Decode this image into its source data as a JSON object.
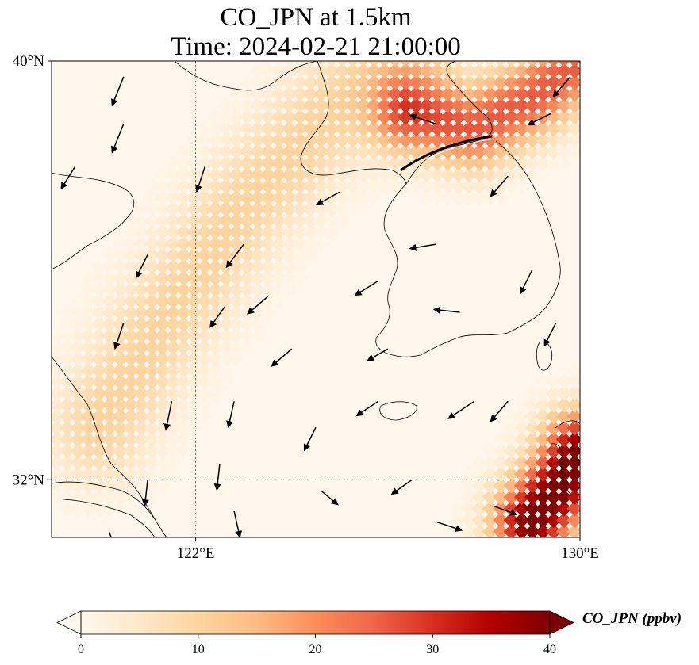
{
  "title_line1": "CO_JPN at 1.5km",
  "title_line2": "Time: 2024-02-21 21:00:00",
  "chart_data": {
    "type": "heatmap",
    "variable": "CO_JPN",
    "colorbar_label": "CO_JPN (ppbv)",
    "colormap": "OrRd",
    "colorbar_ticks": [
      0,
      10,
      20,
      30,
      40
    ],
    "colorbar_range": [
      0,
      40
    ],
    "colorbar_extend": "both",
    "xlim": [
      119.0,
      130.0
    ],
    "ylim": [
      30.9,
      40.0
    ],
    "x_ticks": [
      {
        "value": 122,
        "label": "122°E"
      },
      {
        "value": 130,
        "label": "130°E"
      }
    ],
    "y_ticks": [
      {
        "value": 40,
        "label": "40°N"
      },
      {
        "value": 32,
        "label": "32°N"
      }
    ],
    "gridlines": [
      {
        "lon": 122
      },
      {
        "lat": 32
      }
    ],
    "plumes": [
      {
        "name": "diagonal band west",
        "path": [
          [
            120.0,
            33.0
          ],
          [
            121.3,
            35.0
          ],
          [
            123.0,
            37.2
          ],
          [
            125.0,
            39.2
          ],
          [
            126.5,
            40.2
          ]
        ],
        "peak_ppbv": 10
      },
      {
        "name": "north plume",
        "path": [
          [
            126.5,
            39.0
          ],
          [
            127.8,
            38.7
          ],
          [
            129.0,
            39.3
          ],
          [
            130.0,
            40.0
          ]
        ],
        "peak_ppbv": 26
      },
      {
        "name": "southeast plume",
        "path": [
          [
            129.0,
            31.2
          ],
          [
            129.6,
            31.9
          ],
          [
            130.0,
            32.5
          ]
        ],
        "peak_ppbv": 42
      }
    ],
    "wind_vectors": [
      {
        "lon": 120.5,
        "lat": 39.7,
        "u": -0.8,
        "v": -2.0
      },
      {
        "lon": 120.5,
        "lat": 38.8,
        "u": -0.8,
        "v": -2.0
      },
      {
        "lon": 119.5,
        "lat": 38.0,
        "u": -1.0,
        "v": -1.6
      },
      {
        "lon": 121.0,
        "lat": 36.3,
        "u": -0.8,
        "v": -1.6
      },
      {
        "lon": 120.5,
        "lat": 35.0,
        "u": -0.6,
        "v": -1.8
      },
      {
        "lon": 121.5,
        "lat": 33.5,
        "u": -0.4,
        "v": -2.0
      },
      {
        "lon": 121.0,
        "lat": 32.0,
        "u": -0.2,
        "v": -1.8
      },
      {
        "lon": 122.2,
        "lat": 38.0,
        "u": -0.6,
        "v": -1.8
      },
      {
        "lon": 123.0,
        "lat": 36.5,
        "u": -1.2,
        "v": -1.6
      },
      {
        "lon": 122.6,
        "lat": 35.3,
        "u": -1.0,
        "v": -1.4
      },
      {
        "lon": 122.8,
        "lat": 33.5,
        "u": -0.4,
        "v": -1.8
      },
      {
        "lon": 122.5,
        "lat": 32.3,
        "u": -0.2,
        "v": -1.8
      },
      {
        "lon": 123.5,
        "lat": 35.5,
        "u": -1.4,
        "v": -1.2
      },
      {
        "lon": 124.0,
        "lat": 34.5,
        "u": -1.4,
        "v": -1.2
      },
      {
        "lon": 124.5,
        "lat": 33.0,
        "u": -0.8,
        "v": -1.6
      },
      {
        "lon": 125.0,
        "lat": 37.5,
        "u": -1.6,
        "v": -0.9
      },
      {
        "lon": 125.8,
        "lat": 35.8,
        "u": -1.6,
        "v": -1.0
      },
      {
        "lon": 126.0,
        "lat": 34.5,
        "u": -1.4,
        "v": -0.8
      },
      {
        "lon": 125.8,
        "lat": 33.5,
        "u": -1.5,
        "v": -1.0
      },
      {
        "lon": 126.5,
        "lat": 32.0,
        "u": -1.4,
        "v": -1.0
      },
      {
        "lon": 127.0,
        "lat": 38.8,
        "u": -1.8,
        "v": 0.6
      },
      {
        "lon": 127.0,
        "lat": 36.5,
        "u": -1.8,
        "v": -0.3
      },
      {
        "lon": 127.5,
        "lat": 35.2,
        "u": -1.8,
        "v": 0.2
      },
      {
        "lon": 127.8,
        "lat": 33.5,
        "u": -1.8,
        "v": -1.2
      },
      {
        "lon": 128.5,
        "lat": 37.8,
        "u": -1.2,
        "v": -1.4
      },
      {
        "lon": 129.0,
        "lat": 36.0,
        "u": -0.8,
        "v": -1.6
      },
      {
        "lon": 129.5,
        "lat": 35.0,
        "u": -0.8,
        "v": -1.6
      },
      {
        "lon": 128.5,
        "lat": 33.5,
        "u": -1.2,
        "v": -1.4
      },
      {
        "lon": 128.2,
        "lat": 31.5,
        "u": 1.6,
        "v": -0.6
      },
      {
        "lon": 127.0,
        "lat": 31.2,
        "u": 1.8,
        "v": -0.6
      },
      {
        "lon": 124.6,
        "lat": 31.8,
        "u": 1.2,
        "v": -1.0
      },
      {
        "lon": 122.8,
        "lat": 31.4,
        "u": 0.4,
        "v": -1.8
      },
      {
        "lon": 120.2,
        "lat": 31.0,
        "u": 0.6,
        "v": -1.6
      },
      {
        "lon": 129.4,
        "lat": 39.0,
        "u": -1.6,
        "v": -0.8
      },
      {
        "lon": 129.8,
        "lat": 39.7,
        "u": -1.2,
        "v": -1.4
      }
    ]
  }
}
